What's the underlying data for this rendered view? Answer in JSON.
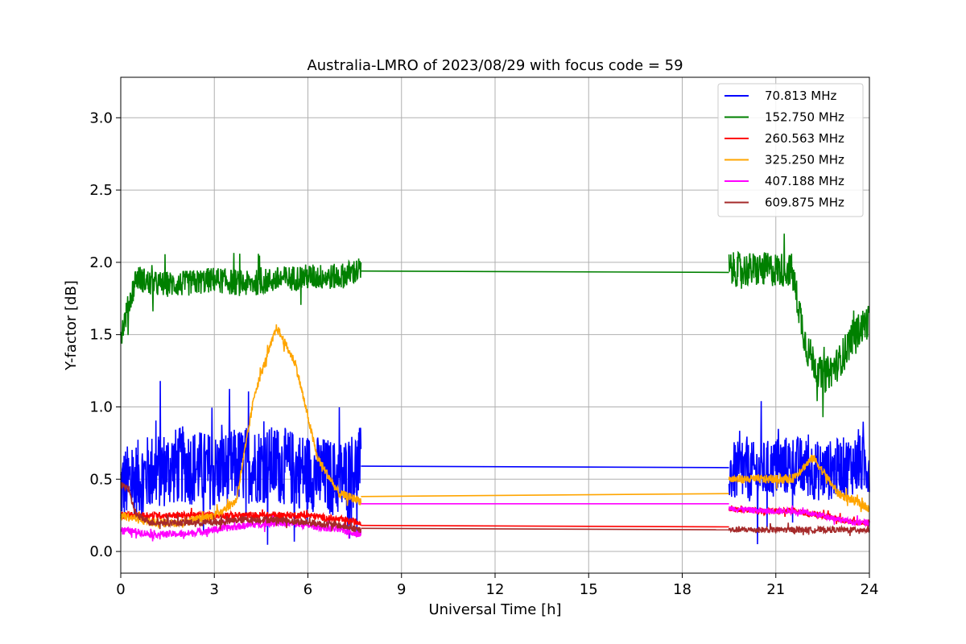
{
  "chart_data": {
    "type": "line",
    "title": "Australia-LMRO of 2023/08/29 with focus code = 59",
    "xlabel": "Universal Time [h]",
    "ylabel": "Y-factor [dB]",
    "xlim": [
      0,
      24
    ],
    "ylim": [
      -0.15,
      3.28
    ],
    "xticks": [
      0,
      3,
      6,
      9,
      12,
      15,
      18,
      21,
      24
    ],
    "yticks": [
      0.0,
      0.5,
      1.0,
      1.5,
      2.0,
      2.5,
      3.0
    ],
    "xtick_labels": [
      "0",
      "3",
      "6",
      "9",
      "12",
      "15",
      "18",
      "21",
      "24"
    ],
    "ytick_labels": [
      "0.0",
      "0.5",
      "1.0",
      "1.5",
      "2.0",
      "2.5",
      "3.0"
    ],
    "grid": true,
    "legend_position": "top-right",
    "series": [
      {
        "name": " 70.813 MHz",
        "color": "#0000ff",
        "segments": [
          {
            "x": [
              0,
              1,
              2,
              3,
              4,
              5,
              6,
              7,
              7.7
            ],
            "y": [
              0.45,
              0.55,
              0.6,
              0.55,
              0.6,
              0.6,
              0.55,
              0.5,
              0.6
            ],
            "noise": 0.9
          },
          {
            "x": [
              7.7,
              19.5
            ],
            "y": [
              0.59,
              0.58
            ],
            "noise": 0
          },
          {
            "x": [
              19.5,
              20.5,
              21.5,
              22.5,
              23.5,
              24
            ],
            "y": [
              0.55,
              0.55,
              0.6,
              0.55,
              0.6,
              0.6
            ],
            "noise": 0.7
          }
        ]
      },
      {
        "name": "152.750 MHz",
        "color": "#008000",
        "segments": [
          {
            "x": [
              0,
              0.5,
              1,
              2,
              3,
              4,
              5,
              6,
              7,
              7.7
            ],
            "y": [
              1.5,
              1.9,
              1.85,
              1.85,
              1.88,
              1.85,
              1.88,
              1.9,
              1.9,
              1.95
            ],
            "noise": 0.3
          },
          {
            "x": [
              7.7,
              19.5
            ],
            "y": [
              1.94,
              1.93
            ],
            "noise": 0
          },
          {
            "x": [
              19.5,
              20.5,
              21.5,
              22,
              22.5,
              23,
              23.5,
              24
            ],
            "y": [
              1.95,
              1.95,
              1.95,
              1.4,
              1.2,
              1.3,
              1.5,
              1.6
            ],
            "noise": 0.4
          }
        ]
      },
      {
        "name": "260.563 MHz",
        "color": "#ff0000",
        "segments": [
          {
            "x": [
              0,
              1,
              2,
              3,
              4,
              5,
              6,
              7,
              7.7
            ],
            "y": [
              0.25,
              0.25,
              0.25,
              0.25,
              0.25,
              0.25,
              0.25,
              0.22,
              0.2
            ],
            "noise": 0.08
          },
          {
            "x": [
              7.7,
              19.5
            ],
            "y": [
              0.18,
              0.17
            ],
            "noise": 0
          },
          {
            "x": [
              19.5,
              20.5,
              21.5,
              22.5,
              23.5,
              24
            ],
            "y": [
              0.3,
              0.28,
              0.28,
              0.25,
              0.2,
              0.2
            ],
            "noise": 0.07
          }
        ]
      },
      {
        "name": "325.250 MHz",
        "color": "#ffa500",
        "segments": [
          {
            "x": [
              0,
              1,
              2,
              3,
              3.7,
              4.3,
              5,
              5.6,
              6.3,
              7,
              7.7
            ],
            "y": [
              0.25,
              0.2,
              0.2,
              0.25,
              0.35,
              1.1,
              1.55,
              1.3,
              0.65,
              0.4,
              0.35
            ],
            "noise": 0.1
          },
          {
            "x": [
              7.7,
              19.5
            ],
            "y": [
              0.38,
              0.4
            ],
            "noise": 0
          },
          {
            "x": [
              19.5,
              20.5,
              21.5,
              22.2,
              23,
              24
            ],
            "y": [
              0.5,
              0.5,
              0.5,
              0.65,
              0.4,
              0.3
            ],
            "noise": 0.1
          }
        ]
      },
      {
        "name": "407.188 MHz",
        "color": "#ff00ff",
        "segments": [
          {
            "x": [
              0,
              1,
              2,
              3,
              4,
              5,
              6,
              7,
              7.7
            ],
            "y": [
              0.15,
              0.12,
              0.12,
              0.15,
              0.18,
              0.2,
              0.18,
              0.15,
              0.12
            ],
            "noise": 0.08
          },
          {
            "x": [
              7.7,
              19.5
            ],
            "y": [
              0.33,
              0.33
            ],
            "noise": 0
          },
          {
            "x": [
              19.5,
              20.5,
              21.5,
              22.5,
              23.5,
              24
            ],
            "y": [
              0.3,
              0.28,
              0.28,
              0.25,
              0.2,
              0.2
            ],
            "noise": 0.07
          }
        ]
      },
      {
        "name": "609.875 MHz",
        "color": "#a52a2a",
        "segments": [
          {
            "x": [
              0,
              0.2,
              0.5,
              1,
              2,
              3,
              4,
              5,
              6,
              7,
              7.7
            ],
            "y": [
              0.45,
              0.45,
              0.25,
              0.2,
              0.2,
              0.2,
              0.22,
              0.22,
              0.2,
              0.18,
              0.15
            ],
            "noise": 0.08
          },
          {
            "x": [
              7.7,
              19.5
            ],
            "y": [
              0.16,
              0.15
            ],
            "noise": 0
          },
          {
            "x": [
              19.5,
              20.5,
              21.5,
              22.5,
              23.5,
              24
            ],
            "y": [
              0.15,
              0.15,
              0.15,
              0.15,
              0.15,
              0.15
            ],
            "noise": 0.07
          }
        ]
      }
    ]
  }
}
